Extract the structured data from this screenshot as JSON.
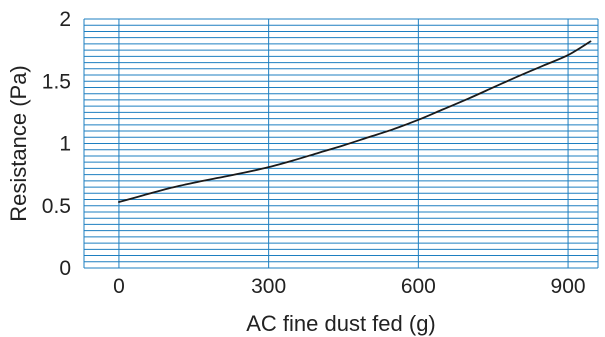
{
  "chart_data": {
    "type": "line",
    "title": "",
    "xlabel": "AC fine dust fed (g)",
    "ylabel": "Resistance (Pa)",
    "xlim": [
      -70,
      960
    ],
    "ylim": [
      0,
      2
    ],
    "x_ticks": [
      0,
      300,
      600,
      900
    ],
    "x_tick_labels": [
      "0",
      "300",
      "600",
      "900"
    ],
    "y_ticks": [
      0,
      0.5,
      1,
      1.5,
      2
    ],
    "y_tick_labels": [
      "0",
      "0.5",
      "1",
      "1.5",
      "2"
    ],
    "grid": {
      "vertical_at": [
        0,
        300,
        600,
        900
      ],
      "horizontal_step": 0.05
    },
    "series": [
      {
        "x": [
          0,
          50,
          100,
          150,
          200,
          250,
          300,
          350,
          400,
          450,
          500,
          550,
          600,
          650,
          700,
          750,
          800,
          850,
          900,
          945
        ],
        "y": [
          0.53,
          0.585,
          0.64,
          0.685,
          0.725,
          0.765,
          0.81,
          0.865,
          0.925,
          0.985,
          1.05,
          1.115,
          1.19,
          1.275,
          1.36,
          1.45,
          1.54,
          1.625,
          1.71,
          1.82
        ]
      }
    ],
    "colors": {
      "grid": "#1e7fc0",
      "line": "#1a1a1a",
      "text": "#222222"
    }
  }
}
